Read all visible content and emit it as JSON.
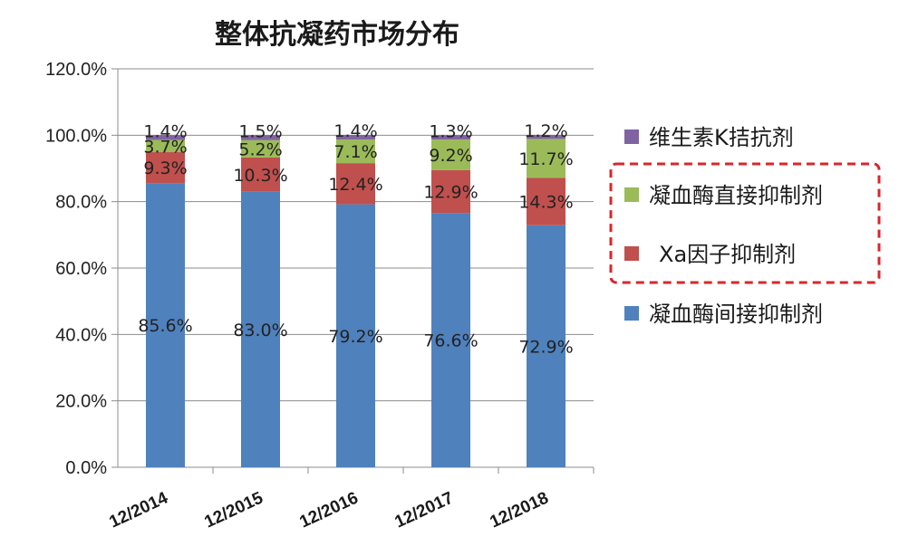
{
  "chart_data": {
    "type": "bar",
    "stacked": true,
    "title": "整体抗凝药市场分布",
    "categories": [
      "12/2014",
      "12/2015",
      "12/2016",
      "12/2017",
      "12/2018"
    ],
    "series": [
      {
        "name": "凝血酶间接抑制剂",
        "values": [
          85.6,
          83.0,
          79.2,
          76.6,
          72.9
        ],
        "labels": [
          "85.6%",
          "83.0%",
          "79.2%",
          "76.6%",
          "72.9%"
        ],
        "color": "#4f81bd"
      },
      {
        "name": "Xa因子抑制剂",
        "values": [
          9.3,
          10.3,
          12.4,
          12.9,
          14.3
        ],
        "labels": [
          "9.3%",
          "10.3%",
          "12.4%",
          "12.9%",
          "14.3%"
        ],
        "color": "#c0504d"
      },
      {
        "name": "凝血酶直接抑制剂",
        "values": [
          3.7,
          5.2,
          7.1,
          9.2,
          11.7
        ],
        "labels": [
          "3.7%",
          "5.2%",
          "7.1%",
          "9.2%",
          "11.7%"
        ],
        "color": "#9bbb59"
      },
      {
        "name": "维生素K拮抗剂",
        "values": [
          1.4,
          1.5,
          1.4,
          1.3,
          1.2
        ],
        "labels": [
          "1.4%",
          "1.5%",
          "1.4%",
          "1.3%",
          "1.2%"
        ],
        "color": "#8064a2"
      }
    ],
    "y_ticks": [
      "0.0%",
      "20.0%",
      "40.0%",
      "60.0%",
      "80.0%",
      "100.0%",
      "120.0%"
    ],
    "ylim": [
      0,
      120
    ],
    "grid": true,
    "legend": "right",
    "legend_order": [
      "维生素K拮抗剂",
      "凝血酶直接抑制剂",
      "Xa因子抑制剂",
      "凝血酶间接抑制剂"
    ],
    "highlight_box_color": "#d9262c"
  }
}
